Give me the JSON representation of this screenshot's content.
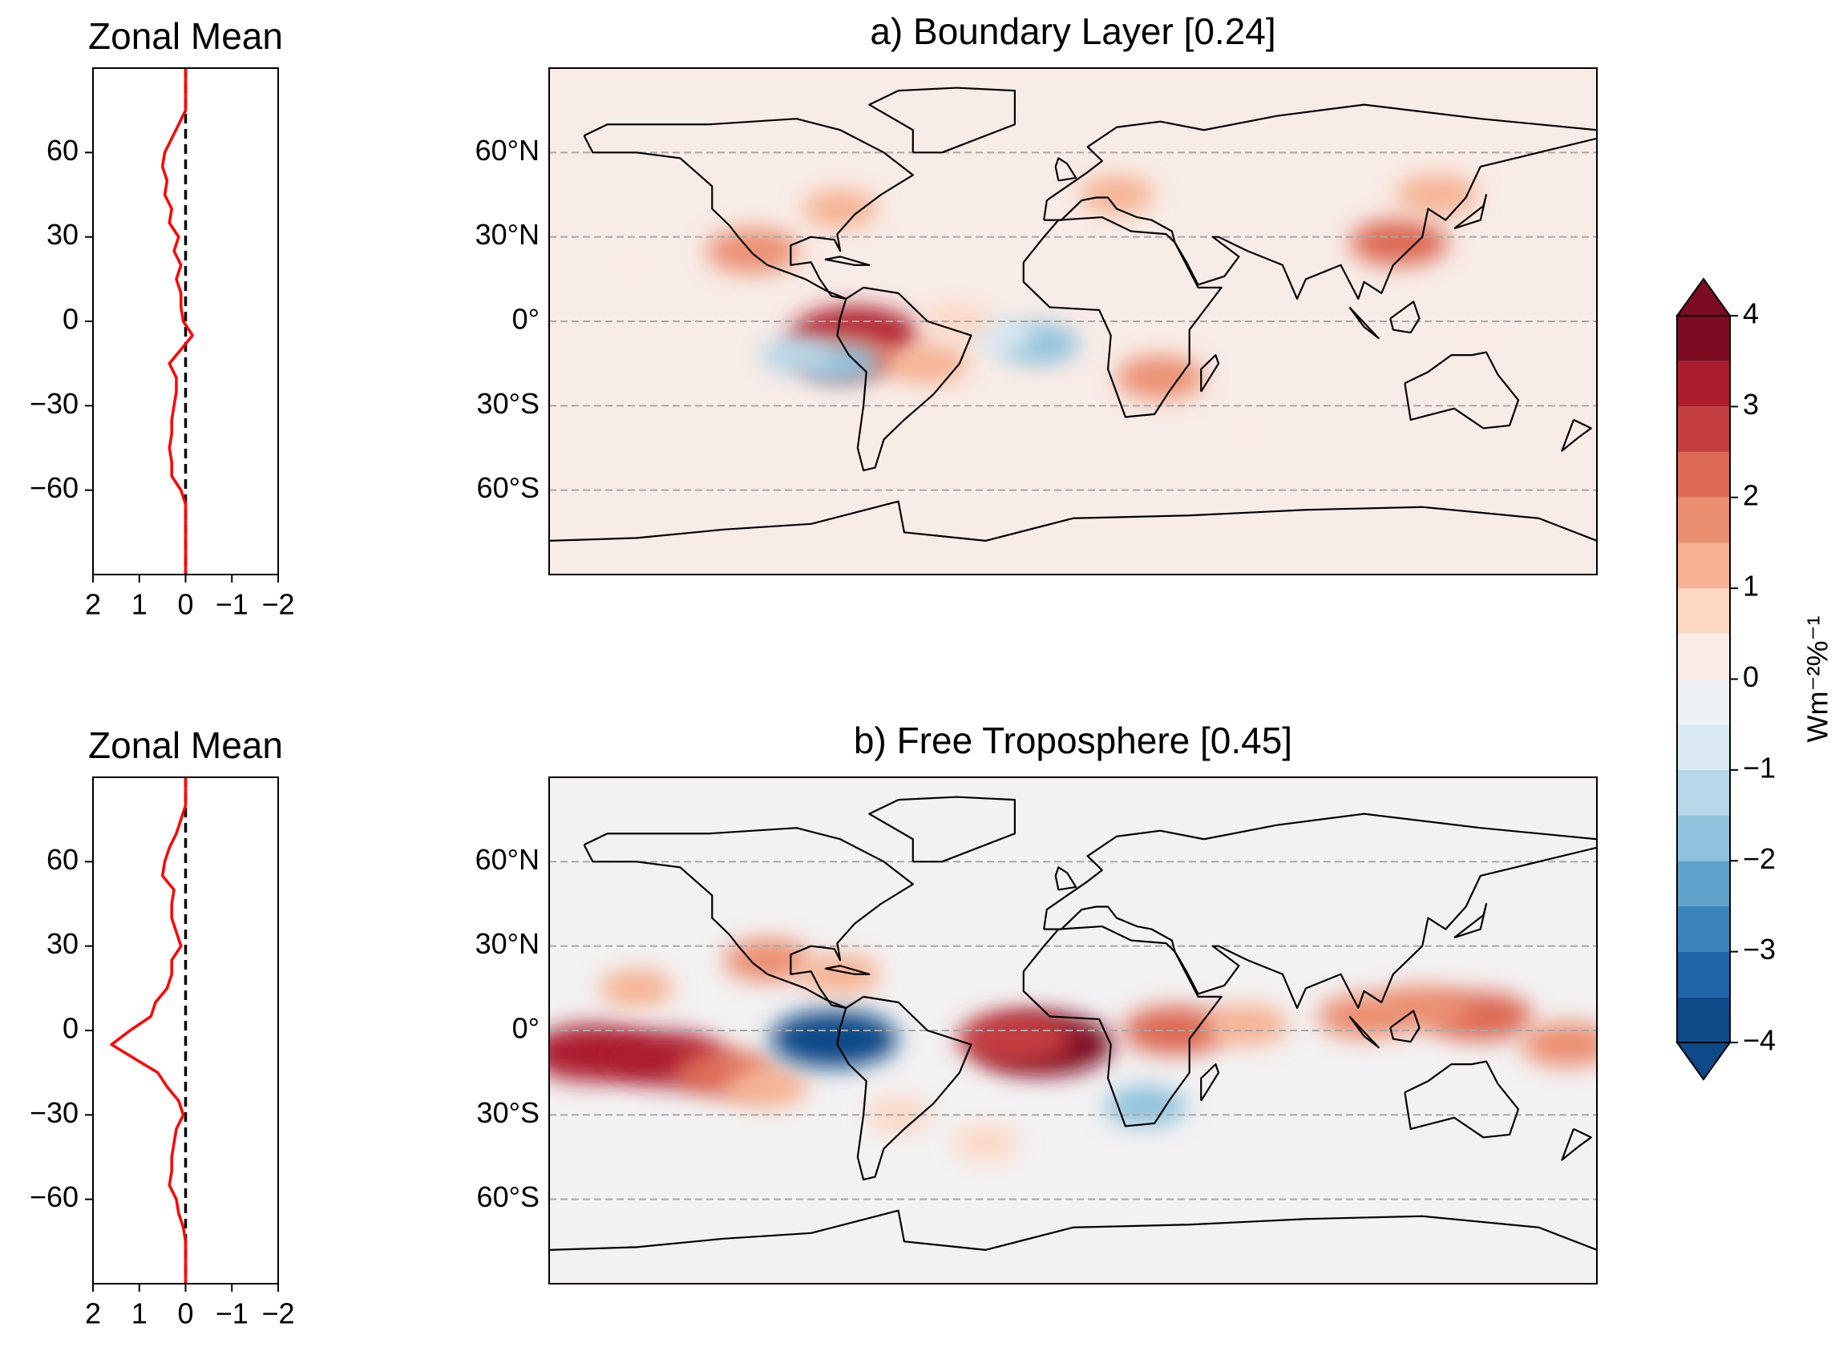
{
  "chart_data": [
    {
      "type": "line",
      "title": "Zonal Mean",
      "y": [
        90,
        85,
        80,
        75,
        70,
        65,
        60,
        55,
        50,
        45,
        40,
        35,
        30,
        25,
        20,
        15,
        10,
        5,
        0,
        -5,
        -10,
        -15,
        -20,
        -25,
        -30,
        -35,
        -40,
        -45,
        -50,
        -55,
        -60,
        -65,
        -70,
        -75,
        -80,
        -85,
        -90
      ],
      "series": [
        {
          "color": "#ff0000",
          "values": [
            0,
            0,
            0,
            0,
            0.15,
            0.3,
            0.45,
            0.5,
            0.4,
            0.45,
            0.3,
            0.35,
            0.15,
            0.25,
            0.1,
            0.2,
            0.1,
            0.1,
            0.05,
            -0.15,
            0.1,
            0.35,
            0.2,
            0.2,
            0.25,
            0.3,
            0.3,
            0.35,
            0.3,
            0.3,
            0.1,
            0,
            0,
            0,
            0,
            0,
            0
          ]
        }
      ],
      "xlim": [
        2,
        -2
      ],
      "xticks": [
        2,
        1,
        0,
        {
          "value": -1,
          "label": "−1"
        },
        {
          "value": -2,
          "label": "−2"
        }
      ],
      "ylim": [
        -90,
        90
      ],
      "yticks": [
        60,
        30,
        0,
        {
          "value": -30,
          "label": "−30"
        },
        {
          "value": -60,
          "label": "−60"
        }
      ],
      "reference_line": {
        "value": 0,
        "color": "#000000",
        "style": "dashed"
      }
    },
    {
      "type": "map",
      "title": "a) Boundary Layer [0.24]",
      "xlim": [
        -180,
        180
      ],
      "ylim": [
        -90,
        90
      ],
      "yticks": [
        {
          "value": 60,
          "label": "60°N"
        },
        {
          "value": 30,
          "label": "30°N"
        },
        {
          "value": 0,
          "label": "0°"
        },
        {
          "value": -30,
          "label": "30°S"
        },
        {
          "value": -60,
          "label": "60°S"
        }
      ],
      "grid": true,
      "background": "#f8ece7",
      "regions": {
        "lon": [
          -75,
          -78,
          -80,
          -95,
          -12,
          -25,
          -110,
          30,
          -50,
          112,
          15,
          -80,
          -40,
          140,
          125,
          -150,
          60
        ],
        "lat": [
          -5,
          -12,
          -15,
          -12,
          -8,
          -5,
          25,
          -20,
          -15,
          28,
          45,
          40,
          0,
          -5,
          45,
          20,
          -40
        ],
        "values": [
          3.5,
          2.5,
          -1.5,
          -1.2,
          -1.5,
          -0.8,
          2,
          1.8,
          1.5,
          2.2,
          1.2,
          1.2,
          0.8,
          0.5,
          1.5,
          0.5,
          0.5
        ]
      }
    },
    {
      "type": "line",
      "title": "Zonal Mean",
      "y": [
        90,
        85,
        80,
        75,
        70,
        65,
        60,
        55,
        50,
        45,
        40,
        35,
        30,
        25,
        20,
        15,
        10,
        5,
        0,
        -5,
        -10,
        -15,
        -20,
        -25,
        -30,
        -35,
        -40,
        -45,
        -50,
        -55,
        -60,
        -65,
        -70,
        -75,
        -80,
        -85,
        -90
      ],
      "series": [
        {
          "color": "#ff0000",
          "values": [
            0,
            0,
            0,
            0.1,
            0.2,
            0.35,
            0.45,
            0.5,
            0.25,
            0.3,
            0.3,
            0.2,
            0.1,
            0.3,
            0.3,
            0.4,
            0.65,
            0.75,
            1.2,
            1.6,
            1.1,
            0.6,
            0.4,
            0.15,
            0.05,
            0.2,
            0.25,
            0.3,
            0.3,
            0.35,
            0.2,
            0.15,
            0.05,
            0,
            0,
            0,
            0
          ]
        }
      ],
      "xlim": [
        2,
        -2
      ],
      "xticks": [
        2,
        1,
        0,
        {
          "value": -1,
          "label": "−1"
        },
        {
          "value": -2,
          "label": "−2"
        }
      ],
      "ylim": [
        -90,
        90
      ],
      "yticks": [
        60,
        30,
        0,
        {
          "value": -30,
          "label": "−30"
        },
        {
          "value": -60,
          "label": "−60"
        }
      ],
      "reference_line": {
        "value": 0,
        "color": "#000000",
        "style": "dashed"
      }
    },
    {
      "type": "map",
      "title": "b) Free Troposphere [0.45]",
      "xlim": [
        -180,
        180
      ],
      "ylim": [
        -90,
        90
      ],
      "yticks": [
        {
          "value": 60,
          "label": "60°N"
        },
        {
          "value": 30,
          "label": "30°N"
        },
        {
          "value": 0,
          "label": "0°"
        },
        {
          "value": -30,
          "label": "30°S"
        },
        {
          "value": -60,
          "label": "60°S"
        }
      ],
      "grid": true,
      "background": "#f3f1f2",
      "regions": {
        "lon": [
          -165,
          -140,
          -120,
          -105,
          -10,
          -20,
          -82,
          25,
          100,
          140,
          35,
          60,
          -105,
          -30,
          120,
          -80,
          -150,
          -60,
          170
        ],
        "lat": [
          -8,
          -10,
          -15,
          -20,
          -5,
          -3,
          -3,
          -27,
          5,
          5,
          0,
          2,
          25,
          -40,
          8,
          20,
          15,
          -30,
          -5
        ],
        "values": [
          3.5,
          3.2,
          2.2,
          1.5,
          4,
          3,
          -3.5,
          -1.5,
          2,
          2.5,
          2.5,
          1.5,
          1.8,
          0.8,
          2,
          1.5,
          1.2,
          0.8,
          2
        ]
      }
    },
    {
      "type": "colorbar",
      "levels": [
        -4,
        -3.5,
        -3,
        -2.5,
        -2,
        -1.5,
        -1,
        -0.5,
        0,
        0.5,
        1,
        1.5,
        2,
        2.5,
        3,
        3.5,
        4
      ],
      "colors": [
        "#0d4a87",
        "#1f63a8",
        "#3a84bb",
        "#5fa3cb",
        "#8fc2dd",
        "#b7d8e9",
        "#d9e8f1",
        "#eef1f4",
        "#f9ece6",
        "#fcd7c2",
        "#f6b293",
        "#eb8f71",
        "#dd6a55",
        "#c43d3f",
        "#ac1d2d",
        "#7b0c21"
      ],
      "ylim": [
        -4,
        4
      ],
      "yticks": [
        4,
        3,
        2,
        1,
        0,
        {
          "value": -1,
          "label": "−1"
        },
        {
          "value": -2,
          "label": "−2"
        },
        {
          "value": -3,
          "label": "−3"
        },
        {
          "value": -4,
          "label": "−4"
        }
      ],
      "label": "Wm⁻²%⁻¹",
      "extend": "both"
    }
  ]
}
